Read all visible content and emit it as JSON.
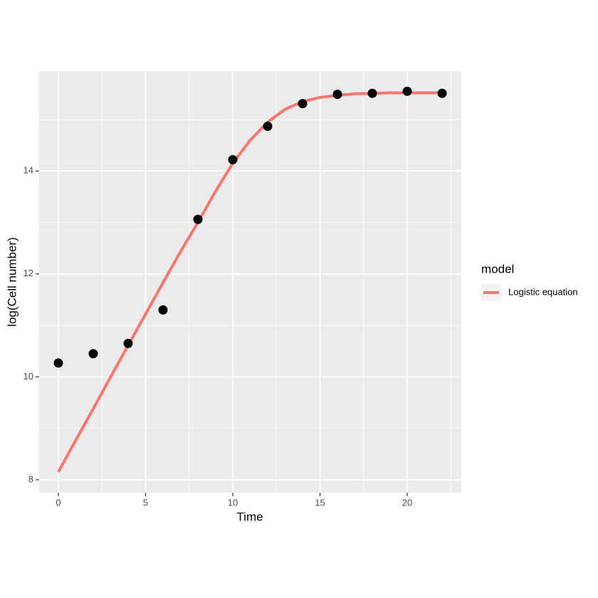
{
  "chart_data": {
    "type": "line",
    "xlabel": "Time",
    "ylabel": "log(Cell number)",
    "xlim": [
      -1.1,
      23.1
    ],
    "ylim": [
      7.75,
      15.94
    ],
    "xticks": [
      0,
      5,
      10,
      15,
      20
    ],
    "yticks": [
      8,
      10,
      12,
      14
    ],
    "x_minor_ticks": [
      2.5,
      7.5,
      12.5,
      17.5,
      22.5
    ],
    "y_minor_ticks": [
      9,
      11,
      13,
      15
    ],
    "grid": true,
    "legend_position": "right",
    "legend_title": "model",
    "points": {
      "color": "#000000",
      "x": [
        0,
        2,
        4,
        6,
        8,
        10,
        12,
        14,
        16,
        18,
        20,
        22
      ],
      "values": [
        10.27,
        10.45,
        10.65,
        11.3,
        13.06,
        14.22,
        14.87,
        15.31,
        15.49,
        15.51,
        15.55,
        15.51
      ]
    },
    "series": [
      {
        "name": "Logistic equation",
        "color": "#F8766D",
        "x": [
          0,
          1,
          2,
          3,
          4,
          5,
          6,
          7,
          8,
          9,
          10,
          11,
          12,
          13,
          14,
          15,
          16,
          17,
          18,
          19,
          20,
          21,
          22
        ],
        "values": [
          8.15,
          8.77,
          9.38,
          10.0,
          10.61,
          11.22,
          11.83,
          12.43,
          13.0,
          13.6,
          14.15,
          14.6,
          14.95,
          15.2,
          15.35,
          15.43,
          15.47,
          15.5,
          15.51,
          15.52,
          15.52,
          15.52,
          15.52
        ]
      }
    ]
  }
}
